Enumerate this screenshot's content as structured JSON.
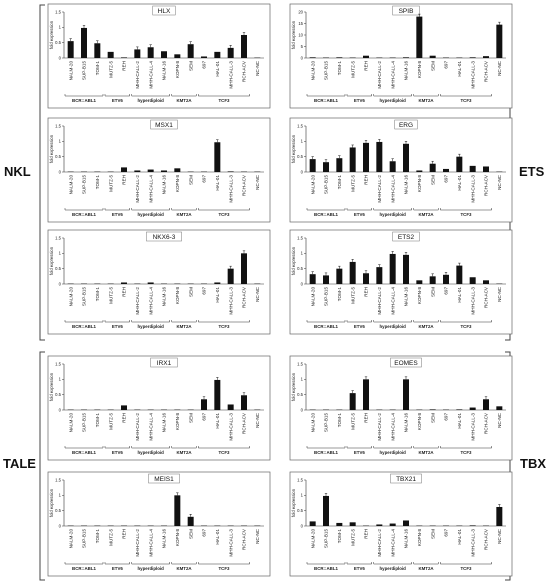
{
  "side_labels": {
    "left_top": "NKL",
    "right_top": "ETS",
    "left_bottom": "TALE",
    "right_bottom": "TBX"
  },
  "colors": {
    "bar": "#111111",
    "axis": "#333333",
    "frame": "#555555",
    "bracket": "#444444"
  },
  "cell_lines": [
    "NALM-20",
    "SUP-B15",
    "TOM-1",
    "MUTZ-5",
    "REH",
    "MHH-CALL-2",
    "MHH-CALL-4",
    "NALM-16",
    "KOPN-8",
    "SEM",
    "697",
    "HAL-01",
    "MHH-CALL-3",
    "RCH-ACV",
    "NC-NC"
  ],
  "groups": [
    {
      "label": "BCR::ABL1",
      "start": 0,
      "end": 2
    },
    {
      "label": "ETV6",
      "start": 3,
      "end": 4
    },
    {
      "label": "hyperdiploid",
      "start": 5,
      "end": 7
    },
    {
      "label": "KMT2A",
      "start": 8,
      "end": 9
    },
    {
      "label": "TCF3",
      "start": 10,
      "end": 13
    }
  ],
  "chart_data": [
    {
      "type": "bar",
      "title": "HLX",
      "ylabel": "fold expression",
      "ylim": [
        0,
        1.5
      ],
      "yticks": [
        0,
        0.5,
        1,
        1.5
      ],
      "categories": [
        "NALM-20",
        "SUP-B15",
        "TOM-1",
        "MUTZ-5",
        "REH",
        "MHH-CALL-2",
        "MHH-CALL-4",
        "NALM-16",
        "KOPN-8",
        "SEM",
        "697",
        "HAL-01",
        "MHH-CALL-3",
        "RCH-ACV",
        "NC-NC"
      ],
      "values": [
        0.55,
        0.98,
        0.48,
        0.2,
        0.02,
        0.28,
        0.35,
        0.22,
        0.12,
        0.45,
        0.05,
        0.2,
        0.33,
        0.75,
        0.01
      ]
    },
    {
      "type": "bar",
      "title": "SPIB",
      "ylabel": "fold expression",
      "ylim": [
        0,
        20
      ],
      "yticks": [
        0,
        5,
        10,
        15,
        20
      ],
      "categories": [
        "NALM-20",
        "SUP-B15",
        "TOM-1",
        "MUTZ-5",
        "REH",
        "MHH-CALL-2",
        "MHH-CALL-4",
        "NALM-16",
        "KOPN-8",
        "SEM",
        "697",
        "HAL-01",
        "MHH-CALL-3",
        "RCH-ACV",
        "NC-NC"
      ],
      "values": [
        0.3,
        0.2,
        0.3,
        0.2,
        1.0,
        0.2,
        0.2,
        0.3,
        18.0,
        1.0,
        0.2,
        0.2,
        0.3,
        0.8,
        14.5
      ]
    },
    {
      "type": "bar",
      "title": "MSX1",
      "ylabel": "fold expression",
      "ylim": [
        0,
        1.5
      ],
      "yticks": [
        0,
        0.5,
        1,
        1.5
      ],
      "categories": [
        "NALM-20",
        "SUP-B15",
        "TOM-1",
        "MUTZ-5",
        "REH",
        "MHH-CALL-2",
        "MHH-CALL-4",
        "NALM-16",
        "KOPN-8",
        "SEM",
        "697",
        "HAL-01",
        "MHH-CALL-3",
        "RCH-ACV",
        "NC-NC"
      ],
      "values": [
        0.0,
        0.0,
        0.0,
        0.0,
        0.15,
        0.05,
        0.08,
        0.05,
        0.12,
        0.0,
        0.0,
        0.97,
        0.02,
        0.01,
        0.0
      ]
    },
    {
      "type": "bar",
      "title": "ERG",
      "ylabel": "fold expression",
      "ylim": [
        0,
        1.5
      ],
      "yticks": [
        0,
        0.5,
        1,
        1.5
      ],
      "categories": [
        "NALM-20",
        "SUP-B15",
        "TOM-1",
        "MUTZ-5",
        "REH",
        "MHH-CALL-2",
        "MHH-CALL-4",
        "NALM-16",
        "KOPN-8",
        "SEM",
        "697",
        "HAL-01",
        "MHH-CALL-3",
        "RCH-ACV",
        "NC-NC"
      ],
      "values": [
        0.42,
        0.32,
        0.45,
        0.8,
        0.95,
        0.98,
        0.35,
        0.92,
        0.05,
        0.27,
        0.1,
        0.5,
        0.2,
        0.18,
        0.01
      ]
    },
    {
      "type": "bar",
      "title": "NKX6-3",
      "ylabel": "fold expression",
      "ylim": [
        0,
        1.5
      ],
      "yticks": [
        0,
        0.5,
        1,
        1.5
      ],
      "categories": [
        "NALM-20",
        "SUP-B15",
        "TOM-1",
        "MUTZ-5",
        "REH",
        "MHH-CALL-2",
        "MHH-CALL-4",
        "NALM-16",
        "KOPN-8",
        "SEM",
        "697",
        "HAL-01",
        "MHH-CALL-3",
        "RCH-ACV",
        "NC-NC"
      ],
      "values": [
        0.0,
        0.0,
        0.0,
        0.0,
        0.05,
        0.0,
        0.05,
        0.0,
        0.0,
        0.0,
        0.0,
        0.05,
        0.5,
        1.0,
        0.0
      ]
    },
    {
      "type": "bar",
      "title": "ETS2",
      "ylabel": "fold expression",
      "ylim": [
        0,
        1.5
      ],
      "yticks": [
        0,
        0.5,
        1,
        1.5
      ],
      "categories": [
        "NALM-20",
        "SUP-B15",
        "TOM-1",
        "MUTZ-5",
        "REH",
        "MHH-CALL-2",
        "MHH-CALL-4",
        "NALM-16",
        "KOPN-8",
        "SEM",
        "697",
        "HAL-01",
        "MHH-CALL-3",
        "RCH-ACV",
        "NC-NC"
      ],
      "values": [
        0.32,
        0.28,
        0.5,
        0.72,
        0.35,
        0.55,
        0.98,
        0.95,
        0.12,
        0.25,
        0.3,
        0.6,
        0.22,
        0.12,
        0.01
      ]
    },
    {
      "type": "bar",
      "title": "IRX1",
      "ylabel": "fold expression",
      "ylim": [
        0,
        1.5
      ],
      "yticks": [
        0,
        0.5,
        1,
        1.5
      ],
      "categories": [
        "NALM-20",
        "SUP-B15",
        "TOM-1",
        "MUTZ-5",
        "REH",
        "MHH-CALL-2",
        "MHH-CALL-4",
        "NALM-16",
        "KOPN-8",
        "SEM",
        "697",
        "HAL-01",
        "MHH-CALL-3",
        "RCH-ACV",
        "NC-NC"
      ],
      "values": [
        0.0,
        0.0,
        0.0,
        0.0,
        0.15,
        0.0,
        0.0,
        0.0,
        0.0,
        0.0,
        0.35,
        0.98,
        0.18,
        0.48,
        0.0
      ]
    },
    {
      "type": "bar",
      "title": "EOMES",
      "ylabel": "fold expression",
      "ylim": [
        0,
        1.5
      ],
      "yticks": [
        0,
        0.5,
        1,
        1.5
      ],
      "categories": [
        "NALM-20",
        "SUP-B15",
        "TOM-1",
        "MUTZ-5",
        "REH",
        "MHH-CALL-2",
        "MHH-CALL-4",
        "NALM-16",
        "KOPN-8",
        "SEM",
        "697",
        "HAL-01",
        "MHH-CALL-3",
        "RCH-ACV",
        "NC-NC"
      ],
      "values": [
        0.0,
        0.0,
        0.0,
        0.55,
        1.0,
        0.0,
        0.0,
        1.0,
        0.0,
        0.02,
        0.0,
        0.02,
        0.08,
        0.35,
        0.12
      ]
    },
    {
      "type": "bar",
      "title": "MEIS1",
      "ylabel": "fold expression",
      "ylim": [
        0,
        1.5
      ],
      "yticks": [
        0,
        0.5,
        1,
        1.5
      ],
      "categories": [
        "NALM-20",
        "SUP-B15",
        "TOM-1",
        "MUTZ-5",
        "REH",
        "MHH-CALL-2",
        "MHH-CALL-4",
        "NALM-16",
        "KOPN-8",
        "SEM",
        "697",
        "HAL-01",
        "MHH-CALL-3",
        "RCH-ACV",
        "NC-NC"
      ],
      "values": [
        0.0,
        0.0,
        0.0,
        0.0,
        0.0,
        0.0,
        0.0,
        0.0,
        1.0,
        0.3,
        0.0,
        0.0,
        0.0,
        0.0,
        0.0
      ]
    },
    {
      "type": "bar",
      "title": "TBX21",
      "ylabel": "fold expression",
      "ylim": [
        0,
        1.5
      ],
      "yticks": [
        0,
        0.5,
        1,
        1.5
      ],
      "categories": [
        "NALM-20",
        "SUP-B15",
        "TOM-1",
        "MUTZ-5",
        "REH",
        "MHH-CALL-2",
        "MHH-CALL-4",
        "NALM-16",
        "KOPN-8",
        "SEM",
        "697",
        "HAL-01",
        "MHH-CALL-3",
        "RCH-ACV",
        "NC-NC"
      ],
      "values": [
        0.15,
        0.98,
        0.1,
        0.12,
        0.0,
        0.05,
        0.08,
        0.18,
        0.01,
        0.0,
        0.0,
        0.01,
        0.02,
        0.01,
        0.62
      ]
    }
  ]
}
